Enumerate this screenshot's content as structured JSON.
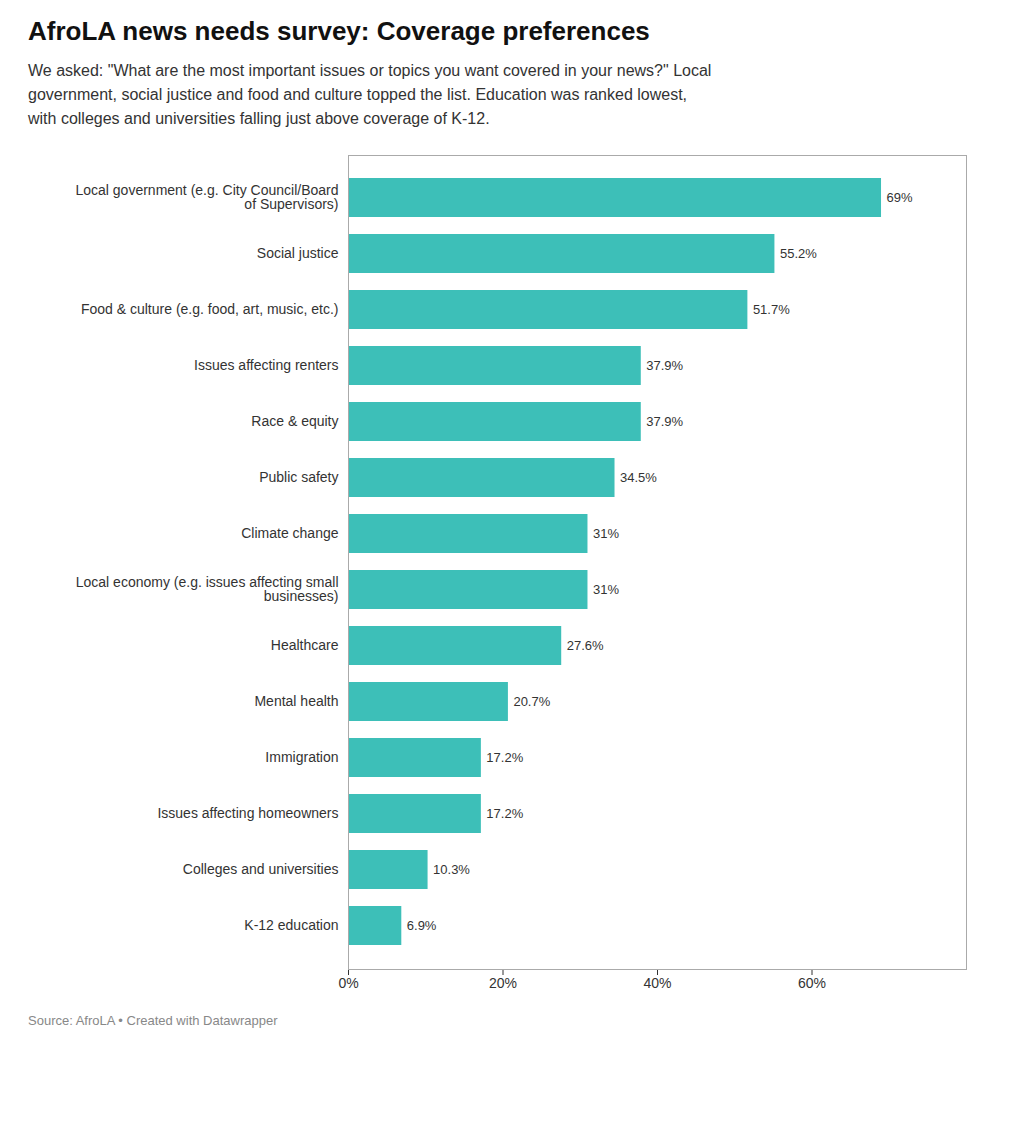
{
  "chart_data": {
    "type": "bar",
    "orientation": "horizontal",
    "title": "AfroLA news needs survey: Coverage preferences",
    "subtitle": "We asked: \"What are the most important issues or topics you want covered in your news?\" Local\ngovernment, social justice and food and culture topped the list. Education was ranked lowest,\nwith colleges and universities falling just above coverage of K-12.",
    "source": "Source: AfroLA • Created with Datawrapper",
    "categories": [
      "Local government (e.g. City Council/Board\nof Supervisors)",
      "Social justice",
      "Food & culture (e.g. food, art, music, etc.)",
      "Issues affecting renters",
      "Race & equity",
      "Public safety",
      "Climate change",
      "Local economy (e.g. issues affecting small\nbusinesses)",
      "Healthcare",
      "Mental health",
      "Immigration",
      "Issues affecting homeowners",
      "Colleges and universities",
      "K-12 education"
    ],
    "values": [
      69,
      55.2,
      51.7,
      37.9,
      37.9,
      34.5,
      31,
      31,
      27.6,
      20.7,
      17.2,
      17.2,
      10.3,
      6.9
    ],
    "value_labels": [
      "69%",
      "55.2%",
      "51.7%",
      "37.9%",
      "37.9%",
      "34.5%",
      "31%",
      "31%",
      "27.6%",
      "20.7%",
      "17.2%",
      "17.2%",
      "10.3%",
      "6.9%"
    ],
    "data_labels": true,
    "color": "#3dbfb8",
    "xlim": [
      0,
      80
    ],
    "xticks": [
      {
        "value": 0,
        "label": "0%"
      },
      {
        "value": 20,
        "label": "20%"
      },
      {
        "value": 40,
        "label": "40%"
      },
      {
        "value": 60,
        "label": "60%"
      }
    ]
  }
}
